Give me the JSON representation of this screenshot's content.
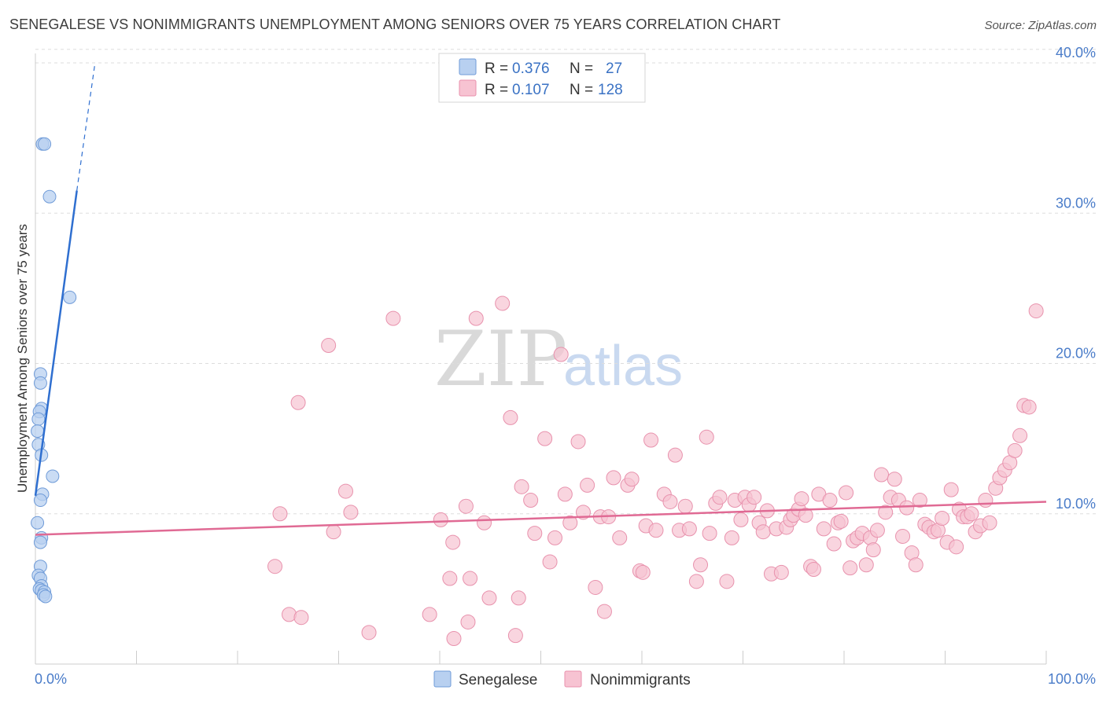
{
  "title": "SENEGALESE VS NONIMMIGRANTS UNEMPLOYMENT AMONG SENIORS OVER 75 YEARS CORRELATION CHART",
  "source": "Source: ZipAtlas.com",
  "watermark": {
    "zip": "ZIP",
    "atlas": "atlas"
  },
  "colors": {
    "senegalese_fill": "#b8d0f0",
    "senegalese_stroke": "#6f9bd8",
    "senegalese_line": "#2f6fd0",
    "nonimmigrants_fill": "#f7c3d2",
    "nonimmigrants_stroke": "#e892ad",
    "nonimmigrants_line": "#e06a94",
    "grid": "#dddddd",
    "tick_text": "#4a7cc9"
  },
  "legend": {
    "rows": [
      {
        "r_label": "R =",
        "r_value": "0.376",
        "n_label": "N =",
        "n_value": "27"
      },
      {
        "r_label": "R =",
        "r_value": "0.107",
        "n_label": "N =",
        "n_value": "128"
      }
    ]
  },
  "chart_data": {
    "type": "scatter",
    "title": "SENEGALESE VS NONIMMIGRANTS UNEMPLOYMENT AMONG SENIORS OVER 75 YEARS CORRELATION CHART",
    "xlabel": "",
    "ylabel": "Unemployment Among Seniors over 75 years",
    "xlim": [
      0,
      100
    ],
    "ylim": [
      0,
      40
    ],
    "x_tick_labels": [
      "0.0%",
      "100.0%"
    ],
    "y_ticks": [
      10,
      20,
      30,
      40
    ],
    "y_tick_labels": [
      "10.0%",
      "20.0%",
      "30.0%",
      "40.0%"
    ],
    "series": [
      {
        "name": "Senegalese",
        "R": 0.376,
        "N": 27,
        "trend": {
          "x0": 0,
          "y0": 11.2,
          "x1": 4.1,
          "y1": 31.5,
          "dashed_to": [
            5.9,
            40
          ]
        },
        "points": [
          [
            0.7,
            34.6
          ],
          [
            0.9,
            34.6
          ],
          [
            1.4,
            31.1
          ],
          [
            3.4,
            24.4
          ],
          [
            0.5,
            19.3
          ],
          [
            0.5,
            18.7
          ],
          [
            0.6,
            17.0
          ],
          [
            0.4,
            16.8
          ],
          [
            0.3,
            16.3
          ],
          [
            0.2,
            15.5
          ],
          [
            0.3,
            14.6
          ],
          [
            0.6,
            13.9
          ],
          [
            1.7,
            12.5
          ],
          [
            0.7,
            11.3
          ],
          [
            0.5,
            10.9
          ],
          [
            0.2,
            9.4
          ],
          [
            0.6,
            8.4
          ],
          [
            0.5,
            8.1
          ],
          [
            0.5,
            6.5
          ],
          [
            0.3,
            5.9
          ],
          [
            0.5,
            5.7
          ],
          [
            0.6,
            5.2
          ],
          [
            0.4,
            5.0
          ],
          [
            0.6,
            4.9
          ],
          [
            0.9,
            4.8
          ],
          [
            0.8,
            4.6
          ],
          [
            1.0,
            4.5
          ]
        ]
      },
      {
        "name": "Nonimmigrants",
        "R": 0.107,
        "N": 128,
        "trend": {
          "x0": 0,
          "y0": 8.6,
          "x1": 100,
          "y1": 10.8
        },
        "points": [
          [
            23.7,
            6.5
          ],
          [
            25.1,
            3.3
          ],
          [
            26.3,
            3.1
          ],
          [
            24.2,
            10.0
          ],
          [
            26.0,
            17.4
          ],
          [
            29.0,
            21.2
          ],
          [
            29.5,
            8.8
          ],
          [
            30.7,
            11.5
          ],
          [
            31.2,
            10.1
          ],
          [
            33.0,
            2.1
          ],
          [
            35.4,
            23.0
          ],
          [
            39.0,
            3.3
          ],
          [
            40.1,
            9.6
          ],
          [
            41.0,
            5.7
          ],
          [
            41.3,
            8.1
          ],
          [
            41.4,
            1.7
          ],
          [
            42.6,
            10.5
          ],
          [
            42.8,
            2.8
          ],
          [
            43.0,
            5.7
          ],
          [
            43.6,
            23.0
          ],
          [
            44.4,
            9.4
          ],
          [
            44.9,
            4.4
          ],
          [
            46.2,
            24.0
          ],
          [
            47.0,
            16.4
          ],
          [
            47.5,
            1.9
          ],
          [
            47.8,
            4.4
          ],
          [
            48.1,
            11.8
          ],
          [
            49.0,
            10.9
          ],
          [
            49.4,
            8.7
          ],
          [
            50.4,
            15.0
          ],
          [
            50.9,
            6.8
          ],
          [
            51.4,
            8.4
          ],
          [
            52.0,
            20.6
          ],
          [
            52.4,
            11.3
          ],
          [
            52.9,
            9.4
          ],
          [
            53.7,
            14.8
          ],
          [
            54.2,
            10.1
          ],
          [
            54.6,
            11.9
          ],
          [
            55.4,
            5.1
          ],
          [
            55.9,
            9.8
          ],
          [
            56.3,
            3.5
          ],
          [
            56.7,
            9.8
          ],
          [
            57.2,
            12.4
          ],
          [
            57.8,
            8.4
          ],
          [
            58.6,
            11.9
          ],
          [
            59.0,
            12.3
          ],
          [
            59.8,
            6.2
          ],
          [
            60.1,
            6.1
          ],
          [
            60.4,
            9.2
          ],
          [
            60.9,
            14.9
          ],
          [
            61.4,
            8.9
          ],
          [
            62.2,
            11.3
          ],
          [
            62.8,
            10.8
          ],
          [
            63.3,
            13.9
          ],
          [
            63.7,
            8.9
          ],
          [
            64.3,
            10.5
          ],
          [
            64.7,
            9.0
          ],
          [
            65.4,
            5.5
          ],
          [
            65.8,
            6.6
          ],
          [
            66.4,
            15.1
          ],
          [
            66.7,
            8.7
          ],
          [
            67.3,
            10.7
          ],
          [
            67.7,
            11.1
          ],
          [
            68.4,
            5.5
          ],
          [
            68.9,
            8.4
          ],
          [
            69.2,
            10.9
          ],
          [
            69.8,
            9.6
          ],
          [
            70.2,
            11.1
          ],
          [
            70.6,
            10.6
          ],
          [
            71.1,
            11.1
          ],
          [
            71.6,
            9.4
          ],
          [
            72.0,
            8.8
          ],
          [
            72.4,
            10.2
          ],
          [
            72.8,
            6.0
          ],
          [
            73.3,
            9.0
          ],
          [
            73.8,
            6.1
          ],
          [
            74.3,
            9.1
          ],
          [
            74.7,
            9.6
          ],
          [
            75.0,
            9.9
          ],
          [
            75.5,
            10.3
          ],
          [
            75.8,
            11.0
          ],
          [
            76.2,
            9.9
          ],
          [
            76.7,
            6.5
          ],
          [
            77.0,
            6.3
          ],
          [
            77.5,
            11.3
          ],
          [
            78.0,
            9.0
          ],
          [
            78.6,
            10.9
          ],
          [
            79.0,
            8.0
          ],
          [
            79.4,
            9.4
          ],
          [
            79.7,
            9.5
          ],
          [
            80.2,
            11.4
          ],
          [
            80.6,
            6.4
          ],
          [
            80.9,
            8.2
          ],
          [
            81.3,
            8.4
          ],
          [
            81.8,
            8.7
          ],
          [
            82.2,
            6.6
          ],
          [
            82.6,
            8.4
          ],
          [
            82.9,
            7.6
          ],
          [
            83.3,
            8.9
          ],
          [
            83.7,
            12.6
          ],
          [
            84.1,
            10.1
          ],
          [
            84.6,
            11.1
          ],
          [
            85.0,
            12.3
          ],
          [
            85.4,
            10.9
          ],
          [
            85.8,
            8.5
          ],
          [
            86.2,
            10.4
          ],
          [
            86.7,
            7.4
          ],
          [
            87.1,
            6.6
          ],
          [
            87.5,
            10.9
          ],
          [
            88.0,
            9.3
          ],
          [
            88.4,
            9.1
          ],
          [
            88.9,
            8.8
          ],
          [
            89.3,
            8.9
          ],
          [
            89.7,
            9.7
          ],
          [
            90.2,
            8.1
          ],
          [
            90.6,
            11.6
          ],
          [
            91.1,
            7.8
          ],
          [
            91.4,
            10.3
          ],
          [
            91.8,
            9.8
          ],
          [
            92.2,
            9.8
          ],
          [
            92.6,
            10.0
          ],
          [
            93.0,
            8.8
          ],
          [
            93.5,
            9.2
          ],
          [
            94.0,
            10.9
          ],
          [
            94.4,
            9.4
          ],
          [
            95.0,
            11.7
          ],
          [
            95.4,
            12.4
          ],
          [
            95.9,
            12.9
          ],
          [
            96.4,
            13.4
          ],
          [
            96.9,
            14.2
          ],
          [
            97.4,
            15.2
          ],
          [
            97.8,
            17.2
          ],
          [
            98.3,
            17.1
          ],
          [
            99.0,
            23.5
          ]
        ]
      }
    ]
  }
}
